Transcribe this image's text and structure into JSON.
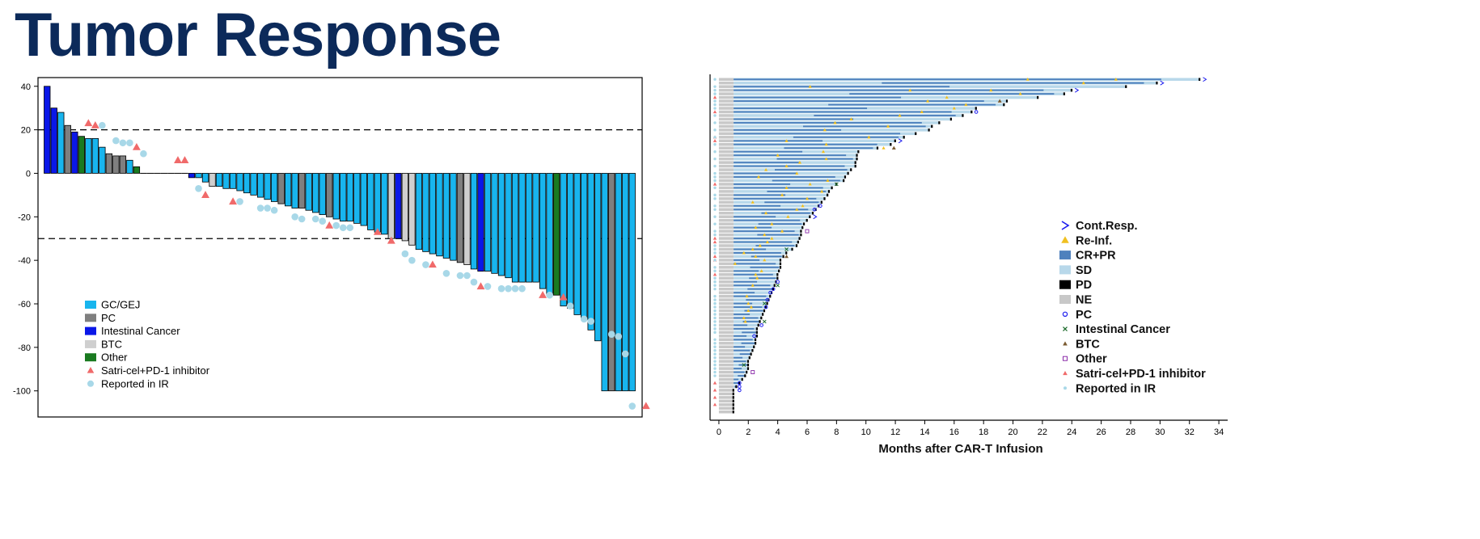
{
  "title": "Tumor Response",
  "colors": {
    "gc": "#18b5ee",
    "pc": "#7f7f7f",
    "intestinal": "#0a17e8",
    "btc": "#cfcfcf",
    "other": "#1a7a20",
    "triangle": "#f06a6a",
    "ir": "#a8d8e8",
    "cr_pr": "#4f81bd",
    "sd": "#b8d8ea",
    "ne": "#c8c8c8",
    "re_inf": "#f0c020"
  },
  "chart_data": [
    {
      "type": "bar",
      "chart": "waterfall",
      "ylim": [
        -112,
        44
      ],
      "yticks": [
        40,
        20,
        0,
        -20,
        -40,
        -60,
        -80,
        -100
      ],
      "reference_lines": [
        20,
        -30
      ],
      "legend_position": "bottom-left",
      "legend": [
        {
          "label": "GC/GEJ",
          "symbol": "square",
          "color": "#18b5ee"
        },
        {
          "label": "PC",
          "symbol": "square",
          "color": "#7f7f7f"
        },
        {
          "label": "Intestinal Cancer",
          "symbol": "square",
          "color": "#0a17e8"
        },
        {
          "label": "BTC",
          "symbol": "square",
          "color": "#cfcfcf"
        },
        {
          "label": "Other",
          "symbol": "square",
          "color": "#1a7a20"
        },
        {
          "label": "Satri-cel+PD-1 inhibitor",
          "symbol": "triangle",
          "color": "#f06a6a"
        },
        {
          "label": "Reported in IR",
          "symbol": "circle",
          "color": "#a8d8e8"
        }
      ],
      "bars": [
        {
          "v": 40,
          "t": "i"
        },
        {
          "v": 30,
          "t": "i"
        },
        {
          "v": 28,
          "t": "g"
        },
        {
          "v": 22,
          "t": "p"
        },
        {
          "v": 19,
          "t": "i"
        },
        {
          "v": 17,
          "t": "o"
        },
        {
          "v": 16,
          "t": "g"
        },
        {
          "v": 16,
          "t": "g"
        },
        {
          "v": 12,
          "t": "g"
        },
        {
          "v": 9,
          "t": "p"
        },
        {
          "v": 8,
          "t": "p"
        },
        {
          "v": 8,
          "t": "p"
        },
        {
          "v": 6,
          "t": "g"
        },
        {
          "v": 3,
          "t": "o"
        },
        {
          "v": 0,
          "t": "g"
        },
        {
          "v": 0,
          "t": "g"
        },
        {
          "v": 0,
          "t": "g"
        },
        {
          "v": 0,
          "t": "g"
        },
        {
          "v": 0,
          "t": "g"
        },
        {
          "v": 0,
          "t": "g"
        },
        {
          "v": 0,
          "t": "g"
        },
        {
          "v": -2,
          "t": "i"
        },
        {
          "v": -2,
          "t": "g"
        },
        {
          "v": -4,
          "t": "g"
        },
        {
          "v": -6,
          "t": "b"
        },
        {
          "v": -6,
          "t": "g"
        },
        {
          "v": -7,
          "t": "g"
        },
        {
          "v": -7,
          "t": "g"
        },
        {
          "v": -8,
          "t": "g"
        },
        {
          "v": -9,
          "t": "g"
        },
        {
          "v": -10,
          "t": "g"
        },
        {
          "v": -11,
          "t": "g"
        },
        {
          "v": -12,
          "t": "g"
        },
        {
          "v": -13,
          "t": "g"
        },
        {
          "v": -14,
          "t": "p"
        },
        {
          "v": -15,
          "t": "g"
        },
        {
          "v": -16,
          "t": "g"
        },
        {
          "v": -16,
          "t": "p"
        },
        {
          "v": -17,
          "t": "g"
        },
        {
          "v": -18,
          "t": "g"
        },
        {
          "v": -19,
          "t": "g"
        },
        {
          "v": -20,
          "t": "p"
        },
        {
          "v": -21,
          "t": "g"
        },
        {
          "v": -22,
          "t": "g"
        },
        {
          "v": -22,
          "t": "g"
        },
        {
          "v": -23,
          "t": "g"
        },
        {
          "v": -24,
          "t": "g"
        },
        {
          "v": -26,
          "t": "g"
        },
        {
          "v": -27,
          "t": "g"
        },
        {
          "v": -28,
          "t": "g"
        },
        {
          "v": -30,
          "t": "b"
        },
        {
          "v": -30,
          "t": "i"
        },
        {
          "v": -31,
          "t": "b"
        },
        {
          "v": -33,
          "t": "b"
        },
        {
          "v": -35,
          "t": "g"
        },
        {
          "v": -36,
          "t": "g"
        },
        {
          "v": -37,
          "t": "g"
        },
        {
          "v": -38,
          "t": "g"
        },
        {
          "v": -39,
          "t": "g"
        },
        {
          "v": -40,
          "t": "g"
        },
        {
          "v": -41,
          "t": "p"
        },
        {
          "v": -42,
          "t": "b"
        },
        {
          "v": -44,
          "t": "g"
        },
        {
          "v": -45,
          "t": "i"
        },
        {
          "v": -45,
          "t": "g"
        },
        {
          "v": -46,
          "t": "g"
        },
        {
          "v": -47,
          "t": "g"
        },
        {
          "v": -48,
          "t": "g"
        },
        {
          "v": -50,
          "t": "g"
        },
        {
          "v": -50,
          "t": "g"
        },
        {
          "v": -50,
          "t": "g"
        },
        {
          "v": -50,
          "t": "g"
        },
        {
          "v": -53,
          "t": "g"
        },
        {
          "v": -56,
          "t": "g"
        },
        {
          "v": -56,
          "t": "o"
        },
        {
          "v": -61,
          "t": "g"
        },
        {
          "v": -62,
          "t": "g"
        },
        {
          "v": -65,
          "t": "g"
        },
        {
          "v": -67,
          "t": "g"
        },
        {
          "v": -72,
          "t": "g"
        },
        {
          "v": -77,
          "t": "g"
        },
        {
          "v": -100,
          "t": "g"
        },
        {
          "v": -100,
          "t": "p"
        },
        {
          "v": -100,
          "t": "g"
        },
        {
          "v": -100,
          "t": "g"
        },
        {
          "v": -100,
          "t": "g"
        }
      ],
      "triangles": [
        {
          "i": 6,
          "y": 23
        },
        {
          "i": 7,
          "y": 22
        },
        {
          "i": 13,
          "y": 12
        },
        {
          "i": 19,
          "y": 6
        },
        {
          "i": 20,
          "y": 6
        },
        {
          "i": 23,
          "y": -10
        },
        {
          "i": 27,
          "y": -13
        },
        {
          "i": 41,
          "y": -24
        },
        {
          "i": 48,
          "y": -27
        },
        {
          "i": 50,
          "y": -31
        },
        {
          "i": 56,
          "y": -42
        },
        {
          "i": 63,
          "y": -52
        },
        {
          "i": 72,
          "y": -56
        },
        {
          "i": 75,
          "y": -57
        },
        {
          "i": 87,
          "y": -107
        }
      ],
      "circles": [
        {
          "i": 8,
          "y": 22
        },
        {
          "i": 10,
          "y": 15
        },
        {
          "i": 11,
          "y": 14
        },
        {
          "i": 12,
          "y": 14
        },
        {
          "i": 14,
          "y": 9
        },
        {
          "i": 22,
          "y": -7
        },
        {
          "i": 28,
          "y": -13
        },
        {
          "i": 31,
          "y": -16
        },
        {
          "i": 32,
          "y": -16
        },
        {
          "i": 33,
          "y": -17
        },
        {
          "i": 36,
          "y": -20
        },
        {
          "i": 37,
          "y": -21
        },
        {
          "i": 39,
          "y": -21
        },
        {
          "i": 40,
          "y": -22
        },
        {
          "i": 42,
          "y": -24
        },
        {
          "i": 43,
          "y": -25
        },
        {
          "i": 44,
          "y": -25
        },
        {
          "i": 52,
          "y": -37
        },
        {
          "i": 53,
          "y": -40
        },
        {
          "i": 55,
          "y": -42
        },
        {
          "i": 58,
          "y": -46
        },
        {
          "i": 60,
          "y": -47
        },
        {
          "i": 61,
          "y": -47
        },
        {
          "i": 62,
          "y": -50
        },
        {
          "i": 64,
          "y": -52
        },
        {
          "i": 66,
          "y": -53
        },
        {
          "i": 67,
          "y": -53
        },
        {
          "i": 68,
          "y": -53
        },
        {
          "i": 69,
          "y": -53
        },
        {
          "i": 73,
          "y": -56
        },
        {
          "i": 76,
          "y": -61
        },
        {
          "i": 78,
          "y": -67
        },
        {
          "i": 79,
          "y": -68
        },
        {
          "i": 82,
          "y": -74
        },
        {
          "i": 83,
          "y": -75
        },
        {
          "i": 84,
          "y": -83
        },
        {
          "i": 85,
          "y": -107
        }
      ]
    },
    {
      "type": "swimmer",
      "xlabel": "Months after CAR-T Infusion",
      "xlim": [
        -0.6,
        34.6
      ],
      "xticks": [
        0,
        2,
        4,
        6,
        8,
        10,
        12,
        14,
        16,
        18,
        20,
        22,
        24,
        26,
        28,
        30,
        32,
        34
      ],
      "legend_position": "right",
      "legend": [
        {
          "label": "Cont.Resp.",
          "symbol": "chevron",
          "color": "#1a1aee"
        },
        {
          "label": "Re-Inf.",
          "symbol": "triangle",
          "color": "#f0c020"
        },
        {
          "label": "CR+PR",
          "symbol": "bar",
          "color": "#4f81bd"
        },
        {
          "label": "SD",
          "symbol": "bar",
          "color": "#b8d8ea"
        },
        {
          "label": "PD",
          "symbol": "bar",
          "color": "#000000"
        },
        {
          "label": "NE",
          "symbol": "bar",
          "color": "#c8c8c8"
        },
        {
          "label": "PC",
          "symbol": "ring",
          "color": "#1a1aee"
        },
        {
          "label": "Intestinal Cancer",
          "symbol": "x",
          "color": "#1a6a2a"
        },
        {
          "label": "BTC",
          "symbol": "triangle",
          "color": "#7a5a30"
        },
        {
          "label": "Other",
          "symbol": "square-outline",
          "color": "#8a2aa8"
        },
        {
          "label": "Satri-cel+PD-1 inhibitor",
          "symbol": "triangle",
          "color": "#f06a6a"
        },
        {
          "label": "Reported in IR",
          "symbol": "dot",
          "color": "#a8d8e8"
        }
      ],
      "durations": [
        32.7,
        29.8,
        27.7,
        24,
        23.5,
        21.7,
        19.6,
        19.4,
        17.5,
        17.2,
        16.6,
        15.8,
        15.0,
        14.5,
        14.3,
        13.4,
        12.6,
        12.0,
        11.7,
        10.8,
        9.5,
        9.4,
        9.4,
        9.3,
        9.3,
        9.0,
        8.8,
        8.6,
        8.5,
        8.0,
        7.7,
        7.5,
        7.4,
        7.2,
        7.0,
        6.8,
        6.6,
        6.4,
        6.2,
        6.0,
        5.8,
        5.7,
        5.6,
        5.6,
        5.5,
        5.4,
        5.3,
        5.0,
        4.6,
        4.4,
        4.2,
        4.2,
        4.2,
        4.1,
        4.0,
        4.0,
        3.9,
        3.8,
        3.7,
        3.6,
        3.5,
        3.4,
        3.3,
        3.2,
        3.1,
        3.0,
        2.9,
        2.8,
        2.7,
        2.6,
        2.6,
        2.6,
        2.5,
        2.5,
        2.4,
        2.3,
        2.2,
        2.1,
        2.0,
        2.0,
        2.0,
        1.9,
        1.8,
        1.6,
        1.4,
        1.2,
        1.0,
        1.0,
        1.0,
        1.0,
        1.0,
        1.0,
        1.0
      ],
      "cont_resp": [
        0,
        1,
        3,
        17,
        38
      ],
      "re_inf": [
        {
          "r": 0,
          "x": 21
        },
        {
          "r": 0,
          "x": 27
        },
        {
          "r": 1,
          "x": 24.8
        },
        {
          "r": 2,
          "x": 6.2
        },
        {
          "r": 3,
          "x": 13
        },
        {
          "r": 3,
          "x": 18.5
        },
        {
          "r": 4,
          "x": 20.5
        },
        {
          "r": 5,
          "x": 15.5
        },
        {
          "r": 6,
          "x": 14.2
        },
        {
          "r": 7,
          "x": 16.8
        },
        {
          "r": 8,
          "x": 16
        },
        {
          "r": 9,
          "x": 13.8
        },
        {
          "r": 10,
          "x": 12.3
        },
        {
          "r": 11,
          "x": 9
        },
        {
          "r": 12,
          "x": 7.9
        },
        {
          "r": 13,
          "x": 11.5
        },
        {
          "r": 14,
          "x": 7.2
        },
        {
          "r": 16,
          "x": 10.2
        },
        {
          "r": 17,
          "x": 4.6
        },
        {
          "r": 18,
          "x": 7.3
        },
        {
          "r": 19,
          "x": 11.2
        },
        {
          "r": 20,
          "x": 7.1
        },
        {
          "r": 21,
          "x": 4
        },
        {
          "r": 22,
          "x": 7.3
        },
        {
          "r": 23,
          "x": 5.5
        },
        {
          "r": 24,
          "x": 4.6
        },
        {
          "r": 25,
          "x": 3.2
        },
        {
          "r": 26,
          "x": 5.3
        },
        {
          "r": 27,
          "x": 2.7
        },
        {
          "r": 28,
          "x": 7.4
        },
        {
          "r": 29,
          "x": 6.2
        },
        {
          "r": 30,
          "x": 4.6
        },
        {
          "r": 31,
          "x": 7.0
        },
        {
          "r": 32,
          "x": 4.3
        },
        {
          "r": 33,
          "x": 6
        },
        {
          "r": 34,
          "x": 2.3
        },
        {
          "r": 35,
          "x": 5.7
        },
        {
          "r": 36,
          "x": 5.3
        },
        {
          "r": 37,
          "x": 3.2
        },
        {
          "r": 38,
          "x": 4.7
        },
        {
          "r": 40,
          "x": 3.6
        },
        {
          "r": 41,
          "x": 2.5
        },
        {
          "r": 42,
          "x": 4.3
        },
        {
          "r": 43,
          "x": 3.1
        },
        {
          "r": 44,
          "x": 3.6
        },
        {
          "r": 45,
          "x": 3.3
        },
        {
          "r": 46,
          "x": 2.8
        },
        {
          "r": 47,
          "x": 2.3
        },
        {
          "r": 48,
          "x": 1.7
        },
        {
          "r": 49,
          "x": 2.5
        },
        {
          "r": 50,
          "x": 3.1
        },
        {
          "r": 51,
          "x": 1.1
        },
        {
          "r": 53,
          "x": 2.9
        },
        {
          "r": 54,
          "x": 2.5
        },
        {
          "r": 55,
          "x": 2.6
        },
        {
          "r": 57,
          "x": 2.3
        },
        {
          "r": 60,
          "x": 1.9
        },
        {
          "r": 62,
          "x": 2.0
        },
        {
          "r": 63,
          "x": 2.2
        },
        {
          "r": 64,
          "x": 2.0
        },
        {
          "r": 66,
          "x": 1.7
        },
        {
          "r": 67,
          "x": 1.8
        }
      ],
      "btc": [
        {
          "r": 6,
          "x": 19.1
        },
        {
          "r": 19,
          "x": 11.9
        },
        {
          "r": 49,
          "x": 4.6
        }
      ],
      "pc": [
        {
          "r": 9,
          "x": 17.5
        },
        {
          "r": 35,
          "x": 6.9
        },
        {
          "r": 36,
          "x": 6.5
        },
        {
          "r": 56,
          "x": 4.0
        },
        {
          "r": 58,
          "x": 3.7
        },
        {
          "r": 59,
          "x": 3.5
        },
        {
          "r": 61,
          "x": 3.3
        },
        {
          "r": 63,
          "x": 3.2
        },
        {
          "r": 68,
          "x": 2.9
        },
        {
          "r": 71,
          "x": 2.4
        },
        {
          "r": 84,
          "x": 1.4
        },
        {
          "r": 85,
          "x": 1.4
        },
        {
          "r": 86,
          "x": 1.4
        }
      ],
      "intestinal": [
        {
          "r": 29,
          "x": 8.0
        },
        {
          "r": 47,
          "x": 4.6
        },
        {
          "r": 57,
          "x": 4.0
        },
        {
          "r": 62,
          "x": 3.1
        },
        {
          "r": 67,
          "x": 3.1
        },
        {
          "r": 79,
          "x": 1.7
        }
      ],
      "other": [
        {
          "r": 42,
          "x": 6.0
        },
        {
          "r": 81,
          "x": 2.3
        }
      ],
      "pd1": [
        5,
        9,
        16,
        17,
        29,
        44,
        45,
        49,
        50,
        54,
        84,
        86,
        88,
        90
      ],
      "ir": [
        0,
        2,
        3,
        4,
        6,
        7,
        8,
        10,
        12,
        14,
        16,
        18,
        20,
        22,
        24,
        26,
        27,
        28,
        30,
        32,
        33,
        35,
        36,
        38,
        40,
        42,
        43,
        46,
        47,
        48,
        50,
        52,
        53,
        55,
        56,
        57,
        58,
        60,
        61,
        62,
        63,
        64,
        65,
        66,
        67,
        68,
        69,
        70,
        72,
        73,
        74,
        75,
        76,
        77,
        78,
        79,
        80,
        81,
        82
      ]
    }
  ]
}
